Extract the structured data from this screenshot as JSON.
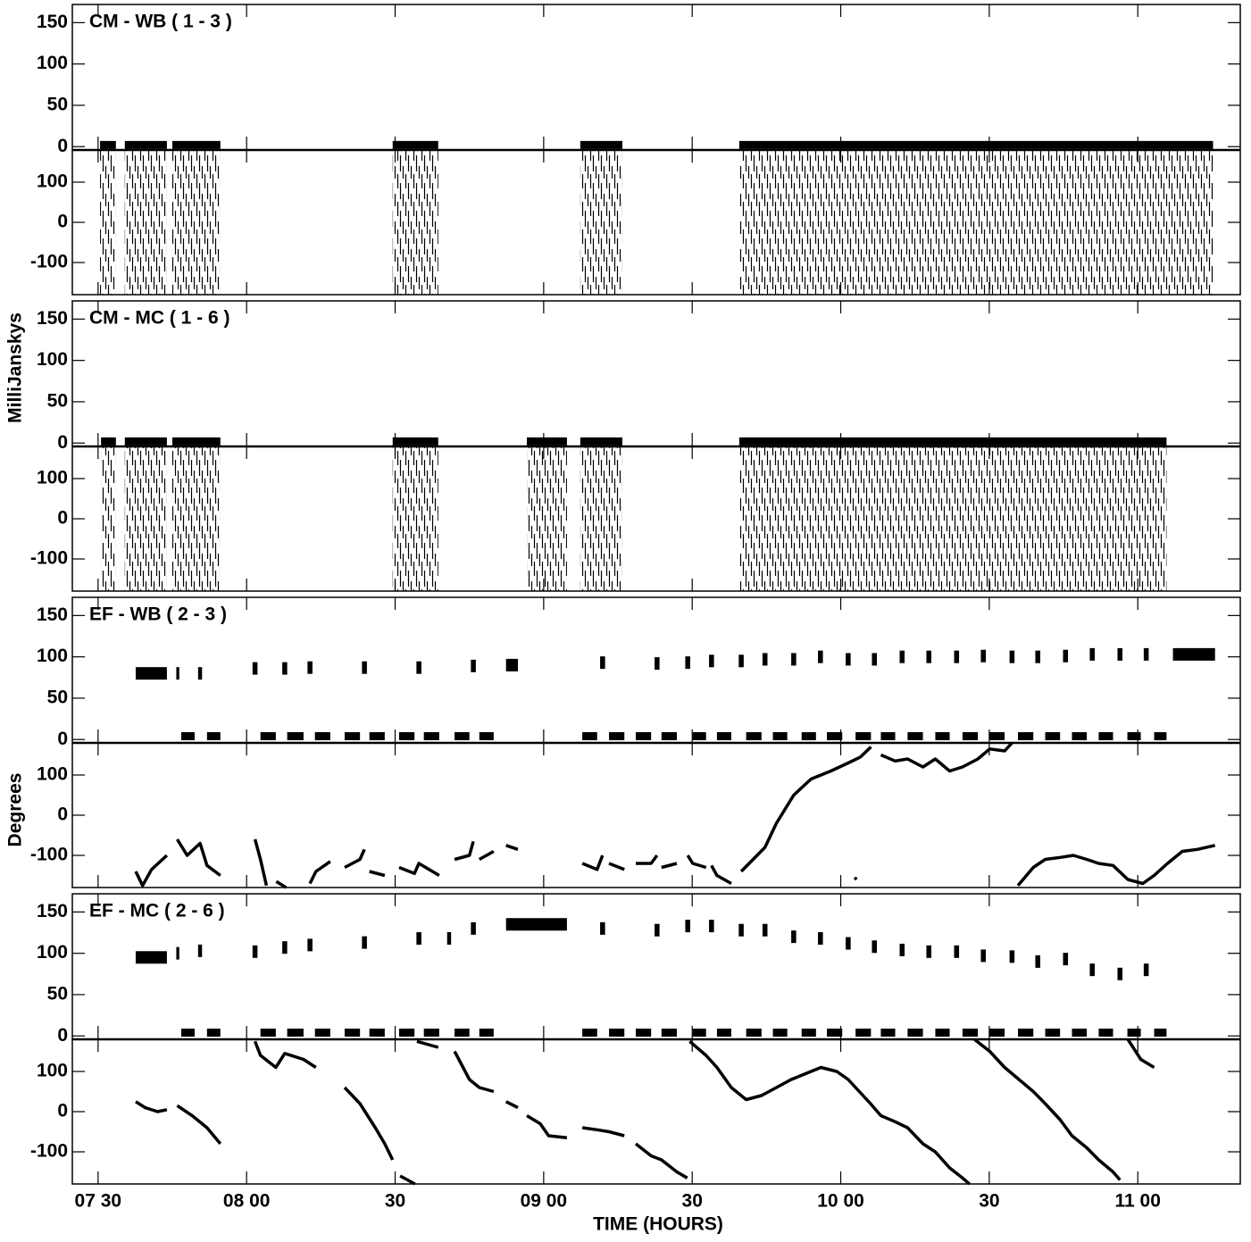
{
  "chart_data": [
    {
      "type": "baseline",
      "title": "CM - WB ( 1 - 3 )",
      "xlim": [
        444.8,
        680.7
      ],
      "ylim": [
        -3,
        172
      ],
      "yticks": [
        0,
        50,
        100,
        150
      ],
      "y2lim": [
        -180,
        180
      ],
      "y2ticks": [
        -100,
        0,
        100
      ],
      "amplitude": {
        "x_start": [
          450.4,
          455.4,
          465,
          509.5,
          547.4,
          579.5
        ],
        "x_end": [
          453.6,
          463.9,
          474.7,
          518.7,
          555.9,
          675.2
        ],
        "values": [
          2,
          2,
          2,
          2,
          2,
          2
        ]
      },
      "phase_band": {
        "x_start": [
          450.4,
          455.4,
          465,
          509.5,
          547.4,
          579.5
        ],
        "x_end": [
          453.6,
          463.9,
          474.7,
          518.7,
          555.9,
          675.2
        ],
        "low": [
          -180,
          -180,
          -180,
          -180,
          -180,
          -180
        ],
        "high": [
          180,
          180,
          180,
          180,
          180,
          180
        ]
      }
    },
    {
      "type": "baseline",
      "title": "CM - MC ( 1 - 6 )",
      "ylabel": "MilliJanskys",
      "xlim": [
        444.8,
        680.7
      ],
      "ylim": [
        -3,
        172
      ],
      "yticks": [
        0,
        50,
        100,
        150
      ],
      "y2lim": [
        -180,
        180
      ],
      "y2ticks": [
        -100,
        0,
        100
      ],
      "amplitude": {
        "x_start": [
          450.6,
          455.4,
          465,
          509.5,
          536.6,
          547.4,
          579.5
        ],
        "x_end": [
          453.6,
          463.9,
          474.7,
          518.7,
          544.7,
          555.9,
          665.8
        ],
        "values": [
          2,
          2,
          2,
          2,
          2,
          2,
          2
        ]
      },
      "phase_band": {
        "x_start": [
          450.6,
          455.4,
          465,
          509.5,
          536.6,
          547.4,
          579.5
        ],
        "x_end": [
          453.6,
          463.9,
          474.7,
          518.7,
          544.7,
          555.9,
          665.8
        ],
        "low": [
          -180,
          -180,
          -180,
          -180,
          -180,
          -180,
          -180
        ],
        "high": [
          180,
          180,
          180,
          180,
          180,
          180,
          180
        ]
      }
    },
    {
      "type": "baseline",
      "title": "EF - WB ( 2 - 3 )",
      "ylabel": "Degrees",
      "xlim": [
        444.8,
        680.7
      ],
      "ylim": [
        -3,
        172
      ],
      "yticks": [
        0,
        50,
        100,
        150
      ],
      "y2lim": [
        -180,
        180
      ],
      "y2ticks": [
        -100,
        0,
        100
      ],
      "amplitude": {
        "x_start": [
          457.6,
          465.8,
          470.2,
          481.2,
          487.2,
          492.3,
          503.3,
          514.3,
          525.3,
          532.4,
          551.4,
          562.4,
          568.6,
          573.4,
          579.4,
          584.2,
          590,
          595.4,
          601,
          606.3,
          611.9,
          617.3,
          622.9,
          628.3,
          634.1,
          639.3,
          644.9,
          650.3,
          655.9,
          661.2,
          667.1,
          466.8,
          472,
          482.8,
          488.2,
          493.8,
          499.8,
          504.8,
          510.8,
          515.8,
          522,
          527,
          547.8,
          553.2,
          558.6,
          563.8,
          570.1,
          575,
          580.9,
          586.3,
          592.1,
          597.2,
          603,
          608.1,
          613.5,
          619.1,
          624.6,
          630.1,
          635.8,
          641.3,
          646.7,
          652.1,
          657.9,
          663.3
        ],
        "x_end": [
          463.9,
          466.4,
          471,
          482.2,
          488.2,
          493.3,
          504.3,
          515.3,
          526.3,
          534.8,
          552.4,
          563.4,
          569.6,
          574.4,
          580.4,
          585.2,
          591,
          596.4,
          602,
          607.3,
          612.9,
          618.3,
          623.9,
          629.3,
          635.1,
          640.3,
          645.9,
          651.3,
          656.9,
          662.2,
          675.6,
          469.5,
          474.7,
          485.9,
          491.5,
          496.9,
          502.9,
          507.9,
          513.9,
          518.9,
          525,
          529.9,
          550.8,
          556.3,
          561.7,
          566.9,
          572.8,
          577.9,
          584,
          589.2,
          595,
          600.3,
          606.1,
          611,
          616.6,
          622,
          627.7,
          633.1,
          638.9,
          644.3,
          649.7,
          655,
          660.6,
          665.8
        ],
        "values": [
          80,
          80,
          80,
          86,
          86,
          87,
          87,
          87,
          89,
          90,
          93,
          92,
          93,
          95,
          95,
          97,
          97,
          100,
          97,
          97,
          100,
          100,
          100,
          101,
          100,
          100,
          101,
          103,
          103,
          103,
          103,
          4,
          4,
          4,
          4,
          4,
          4,
          4,
          4,
          4,
          4,
          4,
          4,
          4,
          4,
          4,
          4,
          4,
          4,
          4,
          4,
          4,
          4,
          4,
          4,
          4,
          4,
          4,
          4,
          4,
          4,
          4,
          4,
          4
        ]
      },
      "phase": {
        "x": [
          457.6,
          459,
          460.8,
          463.9,
          null,
          466,
          468,
          470.6,
          472,
          474.7,
          null,
          481.7,
          482.8,
          484,
          null,
          486,
          488,
          null,
          492.8,
          494,
          496.9,
          null,
          499.8,
          502.9,
          503.8,
          null,
          504.8,
          507.9,
          null,
          510.8,
          513.9,
          514.8,
          518.9,
          null,
          522,
          525,
          525.8,
          null,
          527,
          529.9,
          null,
          532.4,
          534.8,
          null,
          547.8,
          550.8,
          551.9,
          null,
          553.2,
          556.3,
          null,
          558.6,
          561.7,
          562.9,
          null,
          563.8,
          566.9,
          null,
          569.1,
          570.1,
          572.8,
          null,
          573.9,
          575,
          577.9,
          null,
          579.9,
          584.7,
          587,
          590.5,
          594,
          598,
          601.5,
          604,
          606.1,
          null,
          602.8,
          603.2,
          null,
          608.1,
          611,
          613.5,
          616.6,
          619.1,
          622,
          624.6,
          627.7,
          630.1,
          633.1,
          634.6,
          null,
          635.8,
          638.9,
          641.3,
          644.3,
          647,
          649.7,
          652.1,
          655,
          658,
          661,
          663.3,
          666,
          669,
          672,
          675.6
        ],
        "values": [
          -140,
          -175,
          -135,
          -100,
          null,
          -60,
          -100,
          -70,
          -125,
          -150,
          null,
          -60,
          -110,
          -175,
          null,
          -165,
          -180,
          null,
          -170,
          -140,
          -115,
          null,
          -130,
          -110,
          -85,
          null,
          -140,
          -150,
          null,
          -130,
          -145,
          -120,
          -150,
          null,
          -110,
          -100,
          -65,
          null,
          -110,
          -90,
          null,
          -75,
          -85,
          null,
          -120,
          -135,
          -100,
          null,
          -120,
          -135,
          null,
          -120,
          -120,
          -100,
          null,
          -130,
          -120,
          null,
          -100,
          -120,
          -130,
          null,
          -125,
          -150,
          -170,
          null,
          -140,
          -80,
          -20,
          50,
          90,
          110,
          130,
          145,
          170,
          null,
          -155,
          -160,
          null,
          150,
          135,
          140,
          120,
          140,
          110,
          120,
          140,
          165,
          160,
          180,
          null,
          -175,
          -130,
          -110,
          -105,
          -100,
          -110,
          -120,
          -125,
          -160,
          -170,
          -150,
          -120,
          -90,
          -85,
          -75
        ]
      }
    },
    {
      "type": "baseline",
      "title": "EF - MC ( 2 - 6 )",
      "xlabel": "TIME (HOURS)",
      "xlim": [
        444.8,
        680.7
      ],
      "xticks": [
        {
          "value": 450,
          "label": "07 30"
        },
        {
          "value": 480,
          "label": "08 00"
        },
        {
          "value": 510,
          "label": "30"
        },
        {
          "value": 540,
          "label": "09 00"
        },
        {
          "value": 570,
          "label": "30"
        },
        {
          "value": 600,
          "label": "10 00"
        },
        {
          "value": 630,
          "label": "30"
        },
        {
          "value": 660,
          "label": "11 00"
        }
      ],
      "ylim": [
        -3,
        172
      ],
      "yticks": [
        0,
        50,
        100,
        150
      ],
      "y2lim": [
        -180,
        180
      ],
      "y2ticks": [
        -100,
        0,
        100
      ],
      "amplitude": {
        "x_start": [
          457.6,
          465.8,
          470.2,
          481.2,
          487.2,
          492.3,
          503.3,
          514.3,
          520.5,
          525.3,
          532.4,
          551.4,
          562.4,
          568.6,
          573.4,
          579.4,
          584.2,
          590,
          595.4,
          601,
          606.3,
          611.9,
          617.3,
          622.9,
          628.3,
          634.1,
          639.3,
          644.9,
          650.3,
          655.9,
          661.2,
          466.8,
          472,
          482.8,
          488.2,
          493.8,
          499.8,
          504.8,
          510.8,
          515.8,
          522,
          527,
          547.8,
          553.2,
          558.6,
          563.8,
          570.1,
          575,
          580.9,
          586.3,
          592.1,
          597.2,
          603,
          608.1,
          613.5,
          619.1,
          624.6,
          630.1,
          635.8,
          641.3,
          646.7,
          652.1,
          657.9,
          663.3
        ],
        "x_end": [
          463.9,
          466.4,
          471,
          482.2,
          488.2,
          493.3,
          504.3,
          515.3,
          521.3,
          526.3,
          544.7,
          552.4,
          563.4,
          569.6,
          574.4,
          580.4,
          585.2,
          591,
          596.4,
          602,
          607.3,
          612.9,
          618.3,
          623.9,
          629.3,
          635.1,
          640.3,
          645.9,
          651.3,
          656.9,
          662.2,
          469.5,
          474.7,
          485.9,
          491.5,
          496.9,
          502.9,
          507.9,
          513.9,
          518.9,
          525,
          529.9,
          550.8,
          556.3,
          561.7,
          566.9,
          572.8,
          577.9,
          584,
          589.2,
          595,
          600.3,
          606.1,
          611,
          616.6,
          622,
          627.7,
          633.1,
          638.9,
          644.3,
          649.7,
          655,
          660.6,
          665.8
        ],
        "values": [
          95,
          100,
          103,
          102,
          107,
          110,
          113,
          118,
          118,
          130,
          135,
          130,
          128,
          133,
          133,
          128,
          128,
          120,
          118,
          112,
          108,
          104,
          102,
          102,
          97,
          96,
          90,
          93,
          80,
          75,
          80,
          4,
          4,
          4,
          4,
          4,
          4,
          4,
          4,
          4,
          4,
          4,
          4,
          4,
          4,
          4,
          4,
          4,
          4,
          4,
          4,
          4,
          4,
          4,
          4,
          4,
          4,
          4,
          4,
          4,
          4,
          4,
          4,
          4
        ]
      },
      "phase": {
        "x": [
          457.6,
          459.5,
          462,
          463.9,
          null,
          466,
          469,
          472,
          474.7,
          null,
          481.7,
          482.8,
          485.9,
          487.7,
          491.5,
          494,
          null,
          499.8,
          502.9,
          506,
          507.9,
          509.5,
          null,
          511,
          514,
          null,
          514.4,
          518.7,
          null,
          522,
          525,
          527,
          529.9,
          null,
          532.4,
          534.8,
          null,
          536.6,
          539.3,
          541,
          544.7,
          null,
          547.8,
          550.8,
          553.2,
          556.3,
          null,
          558.6,
          561.7,
          563.8,
          566.9,
          569,
          null,
          569.5,
          572.8,
          575,
          577.9,
          580.9,
          584,
          587,
          590,
          593,
          596,
          599.2,
          601.5,
          603,
          606,
          608.1,
          611,
          613.5,
          616.6,
          619.1,
          622,
          624.6,
          626,
          null,
          627,
          630.1,
          633.1,
          636,
          638.9,
          641.3,
          644.3,
          646.7,
          649.7,
          652.1,
          655,
          656.4,
          null,
          658,
          660.6,
          663.3
        ],
        "values": [
          25,
          10,
          0,
          5,
          null,
          15,
          -10,
          -40,
          -80,
          null,
          175,
          140,
          110,
          145,
          130,
          110,
          null,
          60,
          20,
          -40,
          -80,
          -120,
          null,
          -160,
          -180,
          null,
          175,
          160,
          null,
          150,
          80,
          60,
          50,
          null,
          25,
          10,
          null,
          -10,
          -30,
          -60,
          -65,
          null,
          -40,
          -45,
          -50,
          -60,
          null,
          -80,
          -110,
          -120,
          -150,
          -165,
          null,
          175,
          140,
          110,
          60,
          30,
          40,
          60,
          80,
          95,
          110,
          100,
          80,
          60,
          20,
          -10,
          -25,
          -40,
          -80,
          -100,
          -140,
          -165,
          -180,
          null,
          180,
          150,
          110,
          80,
          50,
          20,
          -20,
          -60,
          -90,
          -120,
          -150,
          -170,
          null,
          180,
          130,
          110
        ]
      }
    }
  ]
}
